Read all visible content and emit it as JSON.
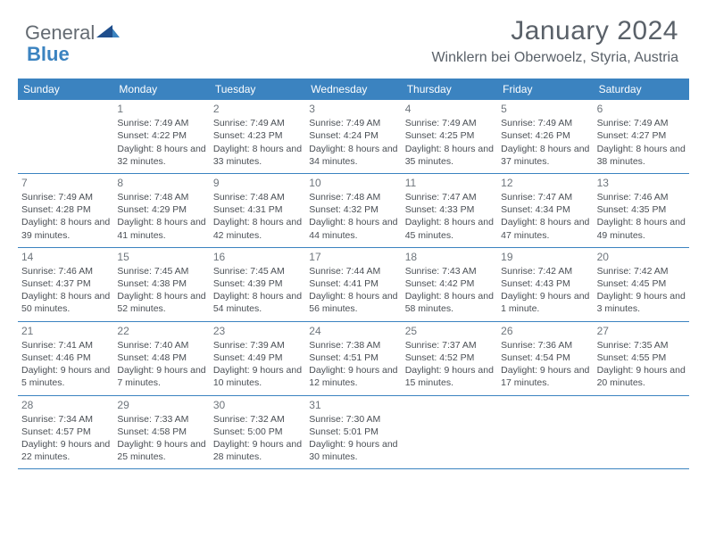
{
  "brand": {
    "text1": "General",
    "text2": "Blue"
  },
  "header": {
    "title": "January 2024",
    "location": "Winklern bei Oberwoelz, Styria, Austria"
  },
  "colors": {
    "header_bar": "#3b83c0",
    "text_muted": "#646b72",
    "cell_text": "#4a4f55",
    "day_num": "#6e757c",
    "divider": "#3b83c0"
  },
  "weekdays": [
    "Sunday",
    "Monday",
    "Tuesday",
    "Wednesday",
    "Thursday",
    "Friday",
    "Saturday"
  ],
  "weeks": [
    [
      {
        "num": "",
        "sunrise": "",
        "sunset": "",
        "daylight": ""
      },
      {
        "num": "1",
        "sunrise": "Sunrise: 7:49 AM",
        "sunset": "Sunset: 4:22 PM",
        "daylight": "Daylight: 8 hours and 32 minutes."
      },
      {
        "num": "2",
        "sunrise": "Sunrise: 7:49 AM",
        "sunset": "Sunset: 4:23 PM",
        "daylight": "Daylight: 8 hours and 33 minutes."
      },
      {
        "num": "3",
        "sunrise": "Sunrise: 7:49 AM",
        "sunset": "Sunset: 4:24 PM",
        "daylight": "Daylight: 8 hours and 34 minutes."
      },
      {
        "num": "4",
        "sunrise": "Sunrise: 7:49 AM",
        "sunset": "Sunset: 4:25 PM",
        "daylight": "Daylight: 8 hours and 35 minutes."
      },
      {
        "num": "5",
        "sunrise": "Sunrise: 7:49 AM",
        "sunset": "Sunset: 4:26 PM",
        "daylight": "Daylight: 8 hours and 37 minutes."
      },
      {
        "num": "6",
        "sunrise": "Sunrise: 7:49 AM",
        "sunset": "Sunset: 4:27 PM",
        "daylight": "Daylight: 8 hours and 38 minutes."
      }
    ],
    [
      {
        "num": "7",
        "sunrise": "Sunrise: 7:49 AM",
        "sunset": "Sunset: 4:28 PM",
        "daylight": "Daylight: 8 hours and 39 minutes."
      },
      {
        "num": "8",
        "sunrise": "Sunrise: 7:48 AM",
        "sunset": "Sunset: 4:29 PM",
        "daylight": "Daylight: 8 hours and 41 minutes."
      },
      {
        "num": "9",
        "sunrise": "Sunrise: 7:48 AM",
        "sunset": "Sunset: 4:31 PM",
        "daylight": "Daylight: 8 hours and 42 minutes."
      },
      {
        "num": "10",
        "sunrise": "Sunrise: 7:48 AM",
        "sunset": "Sunset: 4:32 PM",
        "daylight": "Daylight: 8 hours and 44 minutes."
      },
      {
        "num": "11",
        "sunrise": "Sunrise: 7:47 AM",
        "sunset": "Sunset: 4:33 PM",
        "daylight": "Daylight: 8 hours and 45 minutes."
      },
      {
        "num": "12",
        "sunrise": "Sunrise: 7:47 AM",
        "sunset": "Sunset: 4:34 PM",
        "daylight": "Daylight: 8 hours and 47 minutes."
      },
      {
        "num": "13",
        "sunrise": "Sunrise: 7:46 AM",
        "sunset": "Sunset: 4:35 PM",
        "daylight": "Daylight: 8 hours and 49 minutes."
      }
    ],
    [
      {
        "num": "14",
        "sunrise": "Sunrise: 7:46 AM",
        "sunset": "Sunset: 4:37 PM",
        "daylight": "Daylight: 8 hours and 50 minutes."
      },
      {
        "num": "15",
        "sunrise": "Sunrise: 7:45 AM",
        "sunset": "Sunset: 4:38 PM",
        "daylight": "Daylight: 8 hours and 52 minutes."
      },
      {
        "num": "16",
        "sunrise": "Sunrise: 7:45 AM",
        "sunset": "Sunset: 4:39 PM",
        "daylight": "Daylight: 8 hours and 54 minutes."
      },
      {
        "num": "17",
        "sunrise": "Sunrise: 7:44 AM",
        "sunset": "Sunset: 4:41 PM",
        "daylight": "Daylight: 8 hours and 56 minutes."
      },
      {
        "num": "18",
        "sunrise": "Sunrise: 7:43 AM",
        "sunset": "Sunset: 4:42 PM",
        "daylight": "Daylight: 8 hours and 58 minutes."
      },
      {
        "num": "19",
        "sunrise": "Sunrise: 7:42 AM",
        "sunset": "Sunset: 4:43 PM",
        "daylight": "Daylight: 9 hours and 1 minute."
      },
      {
        "num": "20",
        "sunrise": "Sunrise: 7:42 AM",
        "sunset": "Sunset: 4:45 PM",
        "daylight": "Daylight: 9 hours and 3 minutes."
      }
    ],
    [
      {
        "num": "21",
        "sunrise": "Sunrise: 7:41 AM",
        "sunset": "Sunset: 4:46 PM",
        "daylight": "Daylight: 9 hours and 5 minutes."
      },
      {
        "num": "22",
        "sunrise": "Sunrise: 7:40 AM",
        "sunset": "Sunset: 4:48 PM",
        "daylight": "Daylight: 9 hours and 7 minutes."
      },
      {
        "num": "23",
        "sunrise": "Sunrise: 7:39 AM",
        "sunset": "Sunset: 4:49 PM",
        "daylight": "Daylight: 9 hours and 10 minutes."
      },
      {
        "num": "24",
        "sunrise": "Sunrise: 7:38 AM",
        "sunset": "Sunset: 4:51 PM",
        "daylight": "Daylight: 9 hours and 12 minutes."
      },
      {
        "num": "25",
        "sunrise": "Sunrise: 7:37 AM",
        "sunset": "Sunset: 4:52 PM",
        "daylight": "Daylight: 9 hours and 15 minutes."
      },
      {
        "num": "26",
        "sunrise": "Sunrise: 7:36 AM",
        "sunset": "Sunset: 4:54 PM",
        "daylight": "Daylight: 9 hours and 17 minutes."
      },
      {
        "num": "27",
        "sunrise": "Sunrise: 7:35 AM",
        "sunset": "Sunset: 4:55 PM",
        "daylight": "Daylight: 9 hours and 20 minutes."
      }
    ],
    [
      {
        "num": "28",
        "sunrise": "Sunrise: 7:34 AM",
        "sunset": "Sunset: 4:57 PM",
        "daylight": "Daylight: 9 hours and 22 minutes."
      },
      {
        "num": "29",
        "sunrise": "Sunrise: 7:33 AM",
        "sunset": "Sunset: 4:58 PM",
        "daylight": "Daylight: 9 hours and 25 minutes."
      },
      {
        "num": "30",
        "sunrise": "Sunrise: 7:32 AM",
        "sunset": "Sunset: 5:00 PM",
        "daylight": "Daylight: 9 hours and 28 minutes."
      },
      {
        "num": "31",
        "sunrise": "Sunrise: 7:30 AM",
        "sunset": "Sunset: 5:01 PM",
        "daylight": "Daylight: 9 hours and 30 minutes."
      },
      {
        "num": "",
        "sunrise": "",
        "sunset": "",
        "daylight": ""
      },
      {
        "num": "",
        "sunrise": "",
        "sunset": "",
        "daylight": ""
      },
      {
        "num": "",
        "sunrise": "",
        "sunset": "",
        "daylight": ""
      }
    ]
  ]
}
